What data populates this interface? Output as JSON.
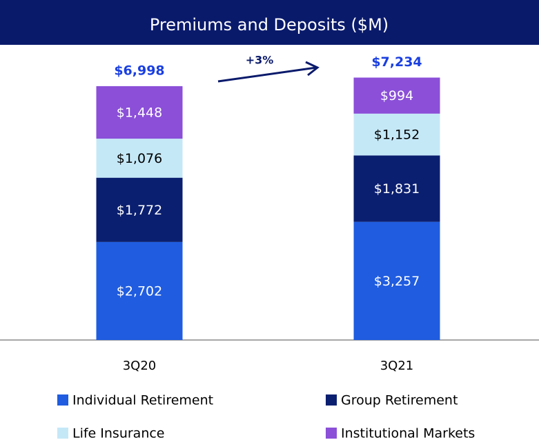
{
  "chart_data": {
    "type": "stacked_bar",
    "title": "Premiums and Deposits ($M)",
    "categories": [
      "3Q20",
      "3Q21"
    ],
    "series": [
      {
        "name": "Individual Retirement",
        "color": "#1f5ce0",
        "label_color": "#ffffff",
        "values": [
          2702,
          3257
        ],
        "value_labels": [
          "$2,702",
          "$3,257"
        ]
      },
      {
        "name": "Group Retirement",
        "color": "#0b1f70",
        "label_color": "#ffffff",
        "values": [
          1772,
          1831
        ],
        "value_labels": [
          "$1,772",
          "$1,831"
        ]
      },
      {
        "name": "Life Insurance",
        "color": "#c5e8f7",
        "label_color": "#000000",
        "values": [
          1076,
          1152
        ],
        "value_labels": [
          "$1,076",
          "$1,152"
        ]
      },
      {
        "name": "Institutional Markets",
        "color": "#8b4fd8",
        "label_color": "#ffffff",
        "values": [
          1448,
          994
        ],
        "value_labels": [
          "$1,448",
          "$994"
        ]
      }
    ],
    "totals": [
      6998,
      7234
    ],
    "total_labels": [
      "$6,998",
      "$7,234"
    ],
    "annotation": "+3%"
  }
}
